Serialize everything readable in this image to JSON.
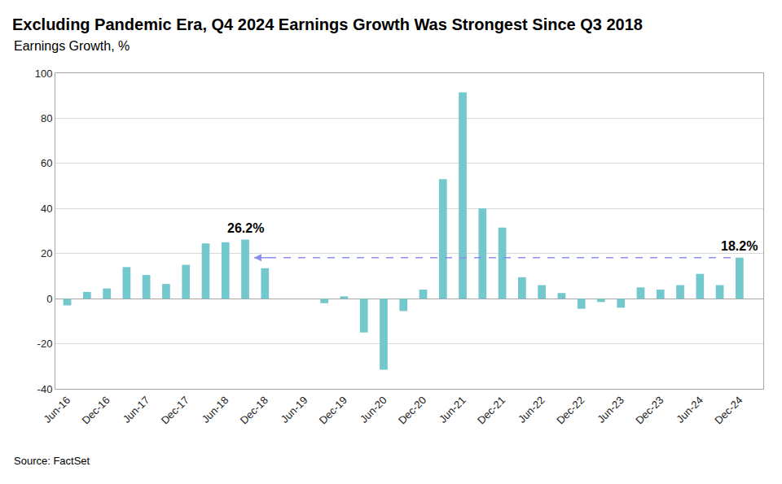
{
  "chart_data": {
    "type": "bar",
    "title": "Excluding Pandemic Era, Q4 2024 Earnings Growth Was Strongest Since Q3 2018",
    "subtitle": "Earnings Growth, %",
    "source": "Source: FactSet",
    "categories": [
      "Jun-16",
      null,
      "Dec-16",
      null,
      "Jun-17",
      null,
      "Dec-17",
      null,
      "Jun-18",
      null,
      "Dec-18",
      null,
      "Jun-19",
      null,
      "Dec-19",
      null,
      "Jun-20",
      null,
      "Dec-20",
      null,
      "Jun-21",
      null,
      "Dec-21",
      null,
      "Jun-22",
      null,
      "Dec-22",
      null,
      "Jun-23",
      null,
      "Dec-23",
      null,
      "Jun-24",
      null,
      "Dec-24"
    ],
    "values": [
      -3,
      3,
      4.5,
      14,
      10.5,
      6.5,
      15,
      24.5,
      25,
      26.2,
      13.5,
      null,
      null,
      -2,
      1,
      -15,
      -31.5,
      -5.5,
      4,
      53,
      91.5,
      40,
      31.5,
      9.5,
      6,
      2.5,
      -4.5,
      -1.5,
      -4,
      5,
      4,
      6,
      11,
      6,
      18.2
    ],
    "color": "#72c8cc",
    "ylim": [
      -40,
      100
    ],
    "yticks": [
      -40,
      -20,
      0,
      20,
      40,
      60,
      80,
      100
    ],
    "grid": true,
    "annotations": [
      {
        "text": "26.2%",
        "value": 26.2
      },
      {
        "text": "18.2%",
        "value": 18.2
      }
    ]
  }
}
